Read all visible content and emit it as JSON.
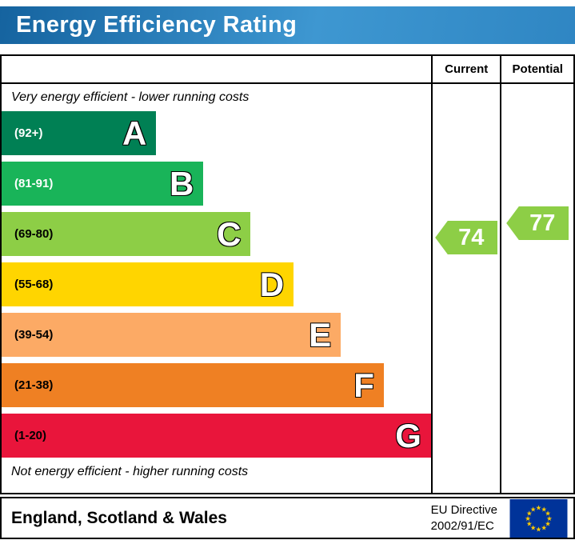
{
  "header": {
    "title": "Energy Efficiency Rating"
  },
  "chart": {
    "columns": {
      "current": "Current",
      "potential": "Potential"
    },
    "top_note": "Very energy efficient - lower running costs",
    "bottom_note": "Not energy efficient - higher running costs",
    "bands": [
      {
        "letter": "A",
        "range": "(92+)",
        "color": "#008054",
        "range_text_color": "#ffffff",
        "width_pct": 36
      },
      {
        "letter": "B",
        "range": "(81-91)",
        "color": "#19b459",
        "range_text_color": "#ffffff",
        "width_pct": 47
      },
      {
        "letter": "C",
        "range": "(69-80)",
        "color": "#8dce46",
        "range_text_color": "#000000",
        "width_pct": 58
      },
      {
        "letter": "D",
        "range": "(55-68)",
        "color": "#ffd500",
        "range_text_color": "#000000",
        "width_pct": 68
      },
      {
        "letter": "E",
        "range": "(39-54)",
        "color": "#fcaa65",
        "range_text_color": "#000000",
        "width_pct": 79
      },
      {
        "letter": "F",
        "range": "(21-38)",
        "color": "#ef8023",
        "range_text_color": "#000000",
        "width_pct": 89
      },
      {
        "letter": "G",
        "range": "(1-20)",
        "color": "#e9153b",
        "range_text_color": "#000000",
        "width_pct": 100
      }
    ],
    "current": {
      "value": "74",
      "arrow_color": "#8dce46"
    },
    "potential": {
      "value": "77",
      "arrow_color": "#8dce46"
    }
  },
  "footer": {
    "region": "England, Scotland & Wales",
    "directive_line1": "EU Directive",
    "directive_line2": "2002/91/EC",
    "eu_flag": {
      "background": "#003399",
      "stars": "#ffcc00"
    }
  },
  "chart_data": {
    "type": "bar",
    "title": "Energy Efficiency Rating",
    "categories": [
      "A",
      "B",
      "C",
      "D",
      "E",
      "F",
      "G"
    ],
    "band_ranges": [
      "92+",
      "81-91",
      "69-80",
      "55-68",
      "39-54",
      "21-38",
      "1-20"
    ],
    "band_colors": [
      "#008054",
      "#19b459",
      "#8dce46",
      "#ffd500",
      "#fcaa65",
      "#ef8023",
      "#e9153b"
    ],
    "bar_lengths_pct_of_scale": [
      36,
      47,
      58,
      68,
      79,
      89,
      100
    ],
    "series": [
      {
        "name": "Current",
        "value": 74,
        "band": "C"
      },
      {
        "name": "Potential",
        "value": 77,
        "band": "C"
      }
    ],
    "annotations": [
      "Very energy efficient - lower running costs",
      "Not energy efficient - higher running costs"
    ],
    "region_note": "England, Scotland & Wales",
    "directive": "EU Directive 2002/91/EC"
  }
}
